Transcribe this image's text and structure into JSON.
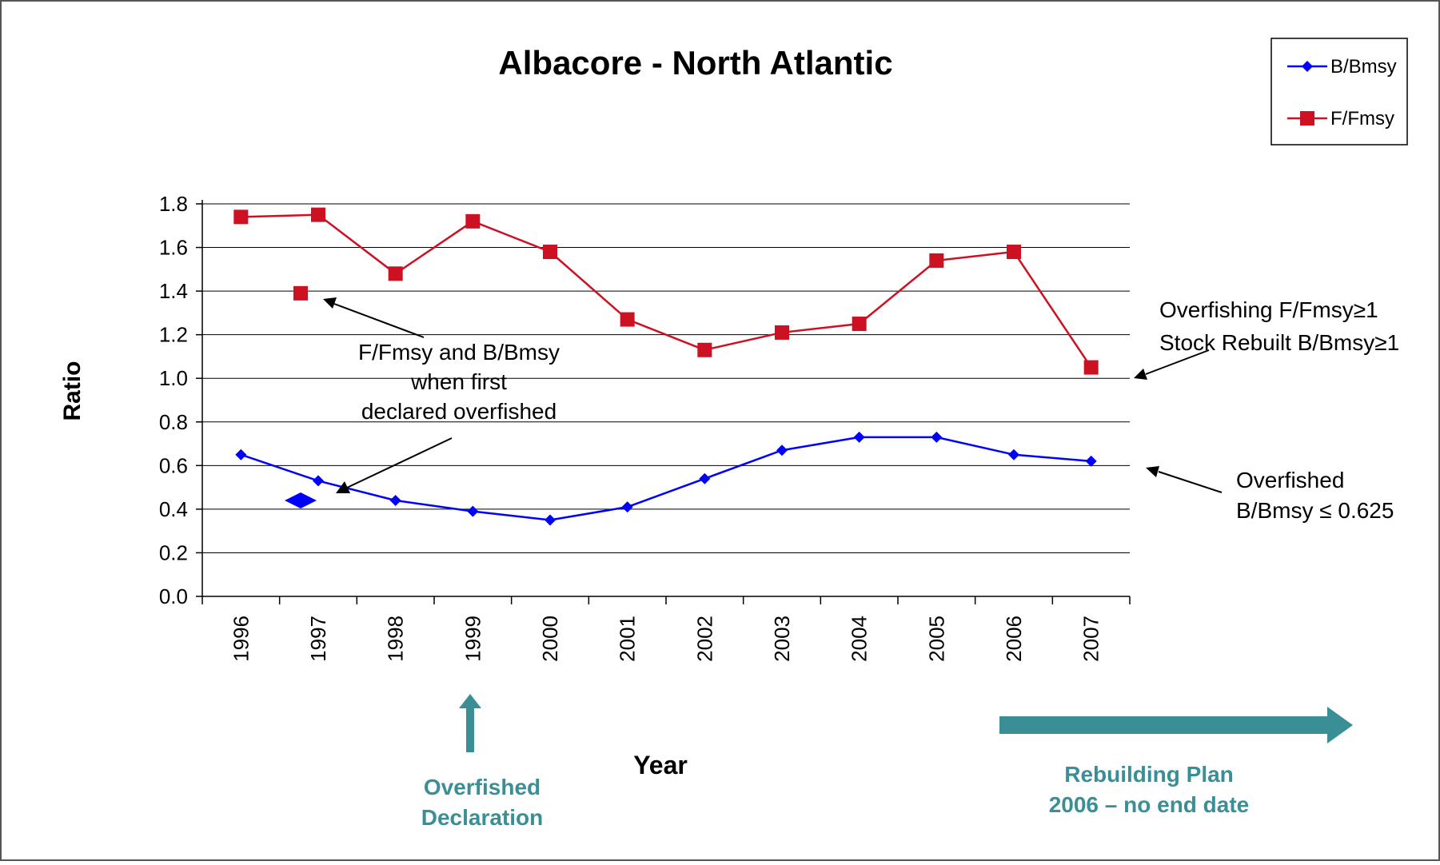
{
  "chart_data": {
    "type": "line",
    "title": "Albacore - North Atlantic",
    "xlabel": "Year",
    "ylabel": "Ratio",
    "categories": [
      "1996",
      "1997",
      "1998",
      "1999",
      "2000",
      "2001",
      "2002",
      "2003",
      "2004",
      "2005",
      "2006",
      "2007"
    ],
    "ylim": [
      0,
      1.8
    ],
    "yticks": [
      "0.0",
      "0.2",
      "0.4",
      "0.6",
      "0.8",
      "1.0",
      "1.2",
      "1.4",
      "1.6",
      "1.8"
    ],
    "grid": "horizontal",
    "legend_position": "top-right",
    "series": [
      {
        "name": "B/Bmsy",
        "color": "#0000ff",
        "marker": "diamond",
        "values": [
          0.65,
          0.53,
          0.44,
          0.39,
          0.35,
          0.41,
          0.54,
          0.67,
          0.73,
          0.73,
          0.65,
          0.62
        ]
      },
      {
        "name": "F/Fmsy",
        "color": "#cc1122",
        "marker": "square",
        "values": [
          1.74,
          1.75,
          1.48,
          1.72,
          1.58,
          1.27,
          1.13,
          1.21,
          1.25,
          1.54,
          1.58,
          1.05
        ]
      }
    ],
    "first_declared": {
      "x": "1997",
      "f_fmsy": 1.39,
      "b_bmsy": 0.44
    },
    "annotations": {
      "declared_lines": [
        "F/Fmsy and B/Bmsy",
        "when first",
        "declared overfished"
      ],
      "overfishing_line1": "Overfishing F/Fmsy≥1",
      "overfishing_line2": "Stock Rebuilt B/Bmsy≥1",
      "overfished_line1": "Overfished",
      "overfished_line2": "B/Bmsy ≤ 0.625",
      "declaration_line1": "Overfished",
      "declaration_line2": "Declaration",
      "rebuild_line1": "Rebuilding Plan",
      "rebuild_line2": "2006 – no end date"
    },
    "colors": {
      "teal": "#3a8f96",
      "grid": "#000000",
      "frame": "#555555"
    }
  }
}
